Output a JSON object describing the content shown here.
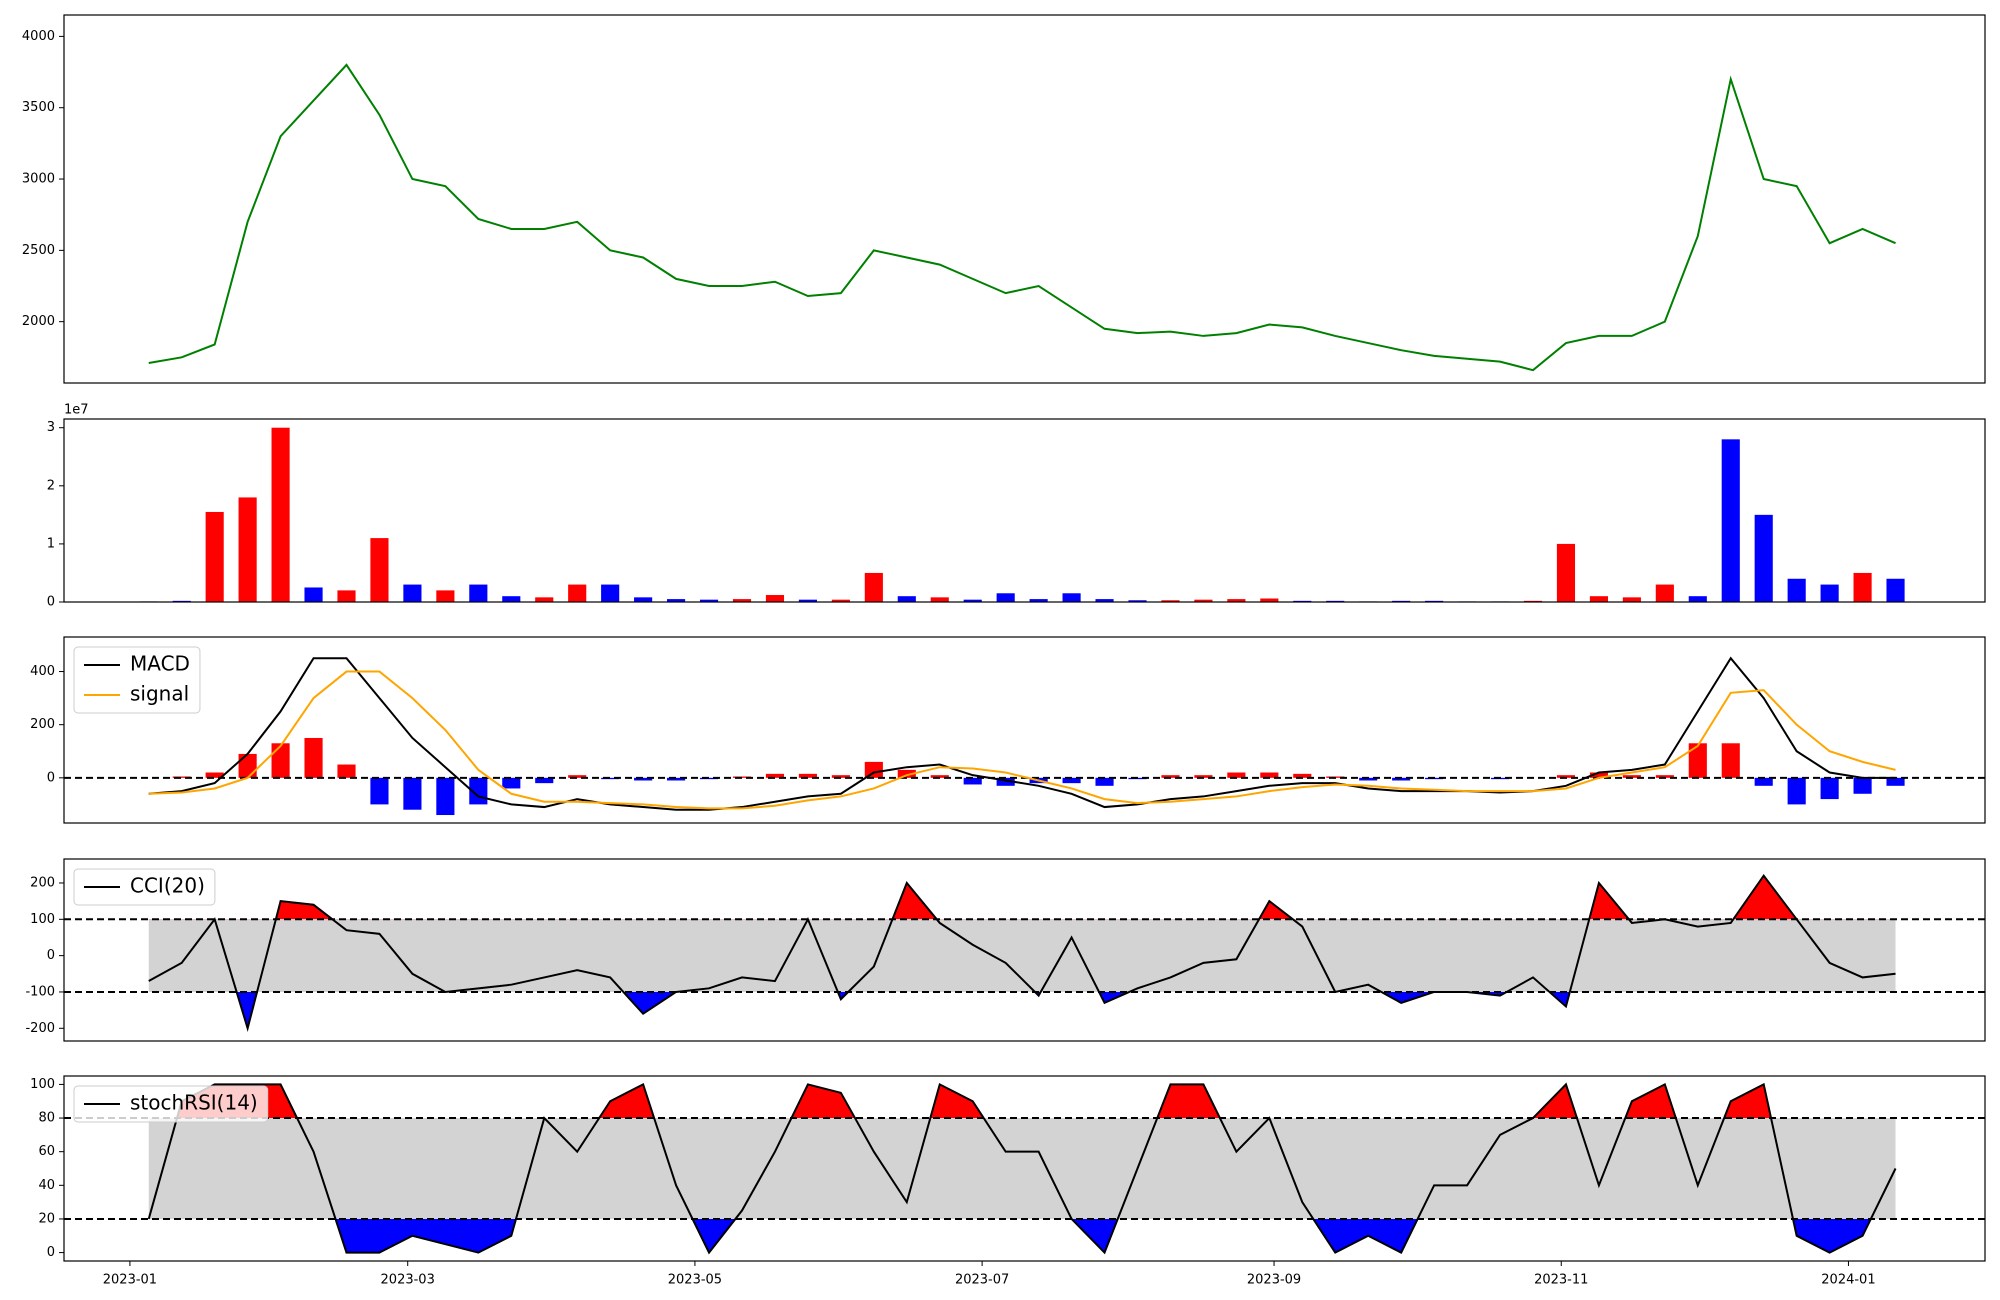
{
  "chart_data": [
    {
      "type": "line",
      "x": [
        "2023-01-05",
        "2023-01-12",
        "2023-01-19",
        "2023-01-26",
        "2023-02-02",
        "2023-02-09",
        "2023-02-16",
        "2023-02-23",
        "2023-03-02",
        "2023-03-09",
        "2023-03-16",
        "2023-03-23",
        "2023-03-30",
        "2023-04-06",
        "2023-04-13",
        "2023-04-20",
        "2023-04-27",
        "2023-05-04",
        "2023-05-11",
        "2023-05-18",
        "2023-05-25",
        "2023-06-01",
        "2023-06-08",
        "2023-06-15",
        "2023-06-22",
        "2023-06-29",
        "2023-07-06",
        "2023-07-13",
        "2023-07-20",
        "2023-07-27",
        "2023-08-03",
        "2023-08-10",
        "2023-08-17",
        "2023-08-24",
        "2023-08-31",
        "2023-09-07",
        "2023-09-14",
        "2023-09-21",
        "2023-09-28",
        "2023-10-05",
        "2023-10-12",
        "2023-10-19",
        "2023-10-26",
        "2023-11-02",
        "2023-11-09",
        "2023-11-16",
        "2023-11-23",
        "2023-11-30",
        "2023-12-07",
        "2023-12-14",
        "2023-12-21",
        "2023-12-28",
        "2024-01-04",
        "2024-01-11"
      ],
      "xlim": [
        "2022-12-18",
        "2024-01-30"
      ],
      "ylim": [
        1570,
        4150
      ],
      "yticks": [
        2000,
        2500,
        3000,
        3500,
        4000
      ],
      "series": [
        {
          "color": "green",
          "values": [
            1710,
            1750,
            1840,
            2700,
            3300,
            3550,
            3800,
            3450,
            3000,
            2950,
            2720,
            2650,
            2650,
            2700,
            2500,
            2450,
            2300,
            2250,
            2250,
            2280,
            2180,
            2200,
            2500,
            2450,
            2400,
            2300,
            2200,
            2250,
            2100,
            1950,
            1920,
            1930,
            1900,
            1920,
            1980,
            1960,
            1900,
            1850,
            1800,
            1760,
            1740,
            1720,
            1660,
            1850,
            1900,
            1900,
            2000,
            2600,
            3700,
            3000,
            2950,
            2550,
            2650,
            2550
          ]
        }
      ]
    },
    {
      "type": "bar",
      "x": [
        "2023-01-05",
        "2023-01-12",
        "2023-01-19",
        "2023-01-26",
        "2023-02-02",
        "2023-02-09",
        "2023-02-16",
        "2023-02-23",
        "2023-03-02",
        "2023-03-09",
        "2023-03-16",
        "2023-03-23",
        "2023-03-30",
        "2023-04-06",
        "2023-04-13",
        "2023-04-20",
        "2023-04-27",
        "2023-05-04",
        "2023-05-11",
        "2023-05-18",
        "2023-05-25",
        "2023-06-01",
        "2023-06-08",
        "2023-06-15",
        "2023-06-22",
        "2023-06-29",
        "2023-07-06",
        "2023-07-13",
        "2023-07-20",
        "2023-07-27",
        "2023-08-03",
        "2023-08-10",
        "2023-08-17",
        "2023-08-24",
        "2023-08-31",
        "2023-09-07",
        "2023-09-14",
        "2023-09-21",
        "2023-09-28",
        "2023-10-05",
        "2023-10-12",
        "2023-10-19",
        "2023-10-26",
        "2023-11-02",
        "2023-11-09",
        "2023-11-16",
        "2023-11-23",
        "2023-11-30",
        "2023-12-07",
        "2023-12-14",
        "2023-12-21",
        "2023-12-28",
        "2024-01-04",
        "2024-01-11"
      ],
      "xlim": [
        "2022-12-18",
        "2024-01-30"
      ],
      "ylim": [
        0,
        3.15
      ],
      "yticks": [
        0,
        1,
        2,
        3
      ],
      "offset_label": "1e7",
      "values": [
        0.01,
        0.02,
        1.55,
        1.8,
        3.0,
        0.25,
        0.2,
        1.1,
        0.3,
        0.2,
        0.3,
        0.1,
        0.08,
        0.3,
        0.3,
        0.08,
        0.05,
        0.04,
        0.05,
        0.12,
        0.04,
        0.04,
        0.5,
        0.1,
        0.08,
        0.04,
        0.15,
        0.05,
        0.15,
        0.05,
        0.03,
        0.03,
        0.04,
        0.05,
        0.06,
        0.02,
        0.02,
        0.01,
        0.02,
        0.02,
        0.01,
        0.01,
        0.02,
        1.0,
        0.1,
        0.08,
        0.3,
        0.1,
        2.8,
        1.5,
        0.4,
        0.3,
        0.5,
        0.4
      ],
      "colors": [
        "blue",
        "blue",
        "red",
        "red",
        "red",
        "blue",
        "red",
        "red",
        "blue",
        "red",
        "blue",
        "blue",
        "red",
        "red",
        "blue",
        "blue",
        "blue",
        "blue",
        "red",
        "red",
        "blue",
        "red",
        "red",
        "blue",
        "red",
        "blue",
        "blue",
        "blue",
        "blue",
        "blue",
        "blue",
        "red",
        "red",
        "red",
        "red",
        "blue",
        "blue",
        "blue",
        "blue",
        "blue",
        "blue",
        "blue",
        "red",
        "red",
        "red",
        "red",
        "red",
        "blue",
        "blue",
        "blue",
        "blue",
        "blue",
        "red",
        "blue"
      ]
    },
    {
      "type": "line",
      "x": [
        "2023-01-05",
        "2023-01-12",
        "2023-01-19",
        "2023-01-26",
        "2023-02-02",
        "2023-02-09",
        "2023-02-16",
        "2023-02-23",
        "2023-03-02",
        "2023-03-09",
        "2023-03-16",
        "2023-03-23",
        "2023-03-30",
        "2023-04-06",
        "2023-04-13",
        "2023-04-20",
        "2023-04-27",
        "2023-05-04",
        "2023-05-11",
        "2023-05-18",
        "2023-05-25",
        "2023-06-01",
        "2023-06-08",
        "2023-06-15",
        "2023-06-22",
        "2023-06-29",
        "2023-07-06",
        "2023-07-13",
        "2023-07-20",
        "2023-07-27",
        "2023-08-03",
        "2023-08-10",
        "2023-08-17",
        "2023-08-24",
        "2023-08-31",
        "2023-09-07",
        "2023-09-14",
        "2023-09-21",
        "2023-09-28",
        "2023-10-05",
        "2023-10-12",
        "2023-10-19",
        "2023-10-26",
        "2023-11-02",
        "2023-11-09",
        "2023-11-16",
        "2023-11-23",
        "2023-11-30",
        "2023-12-07",
        "2023-12-14",
        "2023-12-21",
        "2023-12-28",
        "2024-01-04",
        "2024-01-11"
      ],
      "xlim": [
        "2022-12-18",
        "2024-01-30"
      ],
      "ylim": [
        -170,
        530
      ],
      "yticks": [
        0,
        200,
        400
      ],
      "hlines": [
        0
      ],
      "legend": "upper left",
      "histogram": {
        "pos_color": "red",
        "neg_color": "blue",
        "values": [
          0,
          5,
          20,
          90,
          130,
          150,
          50,
          -100,
          -120,
          -140,
          -100,
          -40,
          -20,
          10,
          -5,
          -10,
          -10,
          -5,
          5,
          15,
          15,
          10,
          60,
          30,
          10,
          -25,
          -30,
          -20,
          -20,
          -30,
          -5,
          10,
          10,
          20,
          20,
          15,
          5,
          -10,
          -10,
          -5,
          0,
          -5,
          0,
          10,
          20,
          10,
          10,
          130,
          130,
          -30,
          -100,
          -80,
          -60,
          -30
        ]
      },
      "series": [
        {
          "name": "MACD",
          "color": "black",
          "values": [
            -60,
            -50,
            -20,
            90,
            250,
            450,
            450,
            300,
            150,
            40,
            -70,
            -100,
            -110,
            -80,
            -100,
            -110,
            -120,
            -120,
            -110,
            -90,
            -70,
            -60,
            20,
            40,
            50,
            10,
            -10,
            -30,
            -60,
            -110,
            -100,
            -80,
            -70,
            -50,
            -30,
            -20,
            -20,
            -40,
            -50,
            -50,
            -50,
            -55,
            -50,
            -30,
            20,
            30,
            50,
            250,
            450,
            300,
            100,
            20,
            0,
            0
          ]
        },
        {
          "name": "signal",
          "color": "orange",
          "values": [
            -60,
            -55,
            -40,
            0,
            120,
            300,
            400,
            400,
            300,
            180,
            30,
            -60,
            -90,
            -90,
            -95,
            -100,
            -110,
            -115,
            -115,
            -105,
            -85,
            -70,
            -40,
            10,
            40,
            35,
            20,
            -10,
            -40,
            -80,
            -95,
            -90,
            -80,
            -70,
            -50,
            -35,
            -25,
            -30,
            -40,
            -45,
            -50,
            -50,
            -50,
            -40,
            0,
            20,
            40,
            120,
            320,
            330,
            200,
            100,
            60,
            30
          ]
        }
      ]
    },
    {
      "type": "line",
      "x": [
        "2023-01-05",
        "2023-01-12",
        "2023-01-19",
        "2023-01-26",
        "2023-02-02",
        "2023-02-09",
        "2023-02-16",
        "2023-02-23",
        "2023-03-02",
        "2023-03-09",
        "2023-03-16",
        "2023-03-23",
        "2023-03-30",
        "2023-04-06",
        "2023-04-13",
        "2023-04-20",
        "2023-04-27",
        "2023-05-04",
        "2023-05-11",
        "2023-05-18",
        "2023-05-25",
        "2023-06-01",
        "2023-06-08",
        "2023-06-15",
        "2023-06-22",
        "2023-06-29",
        "2023-07-06",
        "2023-07-13",
        "2023-07-20",
        "2023-07-27",
        "2023-08-03",
        "2023-08-10",
        "2023-08-17",
        "2023-08-24",
        "2023-08-31",
        "2023-09-07",
        "2023-09-14",
        "2023-09-21",
        "2023-09-28",
        "2023-10-05",
        "2023-10-12",
        "2023-10-19",
        "2023-10-26",
        "2023-11-02",
        "2023-11-09",
        "2023-11-16",
        "2023-11-23",
        "2023-11-30",
        "2023-12-07",
        "2023-12-14",
        "2023-12-21",
        "2023-12-28",
        "2024-01-04",
        "2024-01-11"
      ],
      "xlim": [
        "2022-12-18",
        "2024-01-30"
      ],
      "ylim": [
        -235,
        266
      ],
      "yticks": [
        -200,
        -100,
        0,
        100,
        200
      ],
      "hlines": [
        -100,
        100
      ],
      "legend": "upper left",
      "band_fill": "lightgray",
      "fill_above": "red",
      "fill_below": "blue",
      "series": [
        {
          "name": "CCI(20)",
          "color": "black",
          "values": [
            -70,
            -20,
            100,
            -200,
            150,
            140,
            70,
            60,
            -50,
            -100,
            -90,
            -80,
            -60,
            -40,
            -60,
            -160,
            -100,
            -90,
            -60,
            -70,
            100,
            -120,
            -30,
            200,
            90,
            30,
            -20,
            -110,
            50,
            -130,
            -90,
            -60,
            -20,
            -10,
            150,
            80,
            -100,
            -80,
            -130,
            -100,
            -100,
            -110,
            -60,
            -140,
            200,
            90,
            100,
            80,
            90,
            220,
            100,
            -20,
            -60,
            -50
          ]
        }
      ]
    },
    {
      "type": "line",
      "x": [
        "2023-01-05",
        "2023-01-12",
        "2023-01-19",
        "2023-01-26",
        "2023-02-02",
        "2023-02-09",
        "2023-02-16",
        "2023-02-23",
        "2023-03-02",
        "2023-03-09",
        "2023-03-16",
        "2023-03-23",
        "2023-03-30",
        "2023-04-06",
        "2023-04-13",
        "2023-04-20",
        "2023-04-27",
        "2023-05-04",
        "2023-05-11",
        "2023-05-18",
        "2023-05-25",
        "2023-06-01",
        "2023-06-08",
        "2023-06-15",
        "2023-06-22",
        "2023-06-29",
        "2023-07-06",
        "2023-07-13",
        "2023-07-20",
        "2023-07-27",
        "2023-08-03",
        "2023-08-10",
        "2023-08-17",
        "2023-08-24",
        "2023-08-31",
        "2023-09-07",
        "2023-09-14",
        "2023-09-21",
        "2023-09-28",
        "2023-10-05",
        "2023-10-12",
        "2023-10-19",
        "2023-10-26",
        "2023-11-02",
        "2023-11-09",
        "2023-11-16",
        "2023-11-23",
        "2023-11-30",
        "2023-12-07",
        "2023-12-14",
        "2023-12-21",
        "2023-12-28",
        "2024-01-04",
        "2024-01-11"
      ],
      "xlim": [
        "2022-12-18",
        "2024-01-30"
      ],
      "xticks": [
        {
          "value": "2023-01-01",
          "label": "2023-01"
        },
        {
          "value": "2023-03-01",
          "label": "2023-03"
        },
        {
          "value": "2023-05-01",
          "label": "2023-05"
        },
        {
          "value": "2023-07-01",
          "label": "2023-07"
        },
        {
          "value": "2023-09-01",
          "label": "2023-09"
        },
        {
          "value": "2023-11-01",
          "label": "2023-11"
        },
        {
          "value": "2024-01-01",
          "label": "2024-01"
        }
      ],
      "ylim": [
        -5,
        105
      ],
      "yticks": [
        0,
        20,
        40,
        60,
        80,
        100
      ],
      "hlines": [
        20,
        80
      ],
      "legend": "upper left",
      "band_fill": "lightgray",
      "fill_above": "red",
      "fill_below": "blue",
      "series": [
        {
          "name": "stochRSI(14)",
          "color": "black",
          "values": [
            20,
            90,
            100,
            100,
            100,
            60,
            0,
            0,
            10,
            5,
            0,
            10,
            80,
            60,
            90,
            100,
            40,
            0,
            25,
            60,
            100,
            95,
            60,
            30,
            100,
            90,
            60,
            60,
            20,
            0,
            50,
            100,
            100,
            60,
            80,
            30,
            0,
            10,
            0,
            40,
            40,
            70,
            80,
            100,
            40,
            90,
            100,
            40,
            90,
            100,
            10,
            0,
            10,
            50
          ]
        }
      ]
    }
  ]
}
